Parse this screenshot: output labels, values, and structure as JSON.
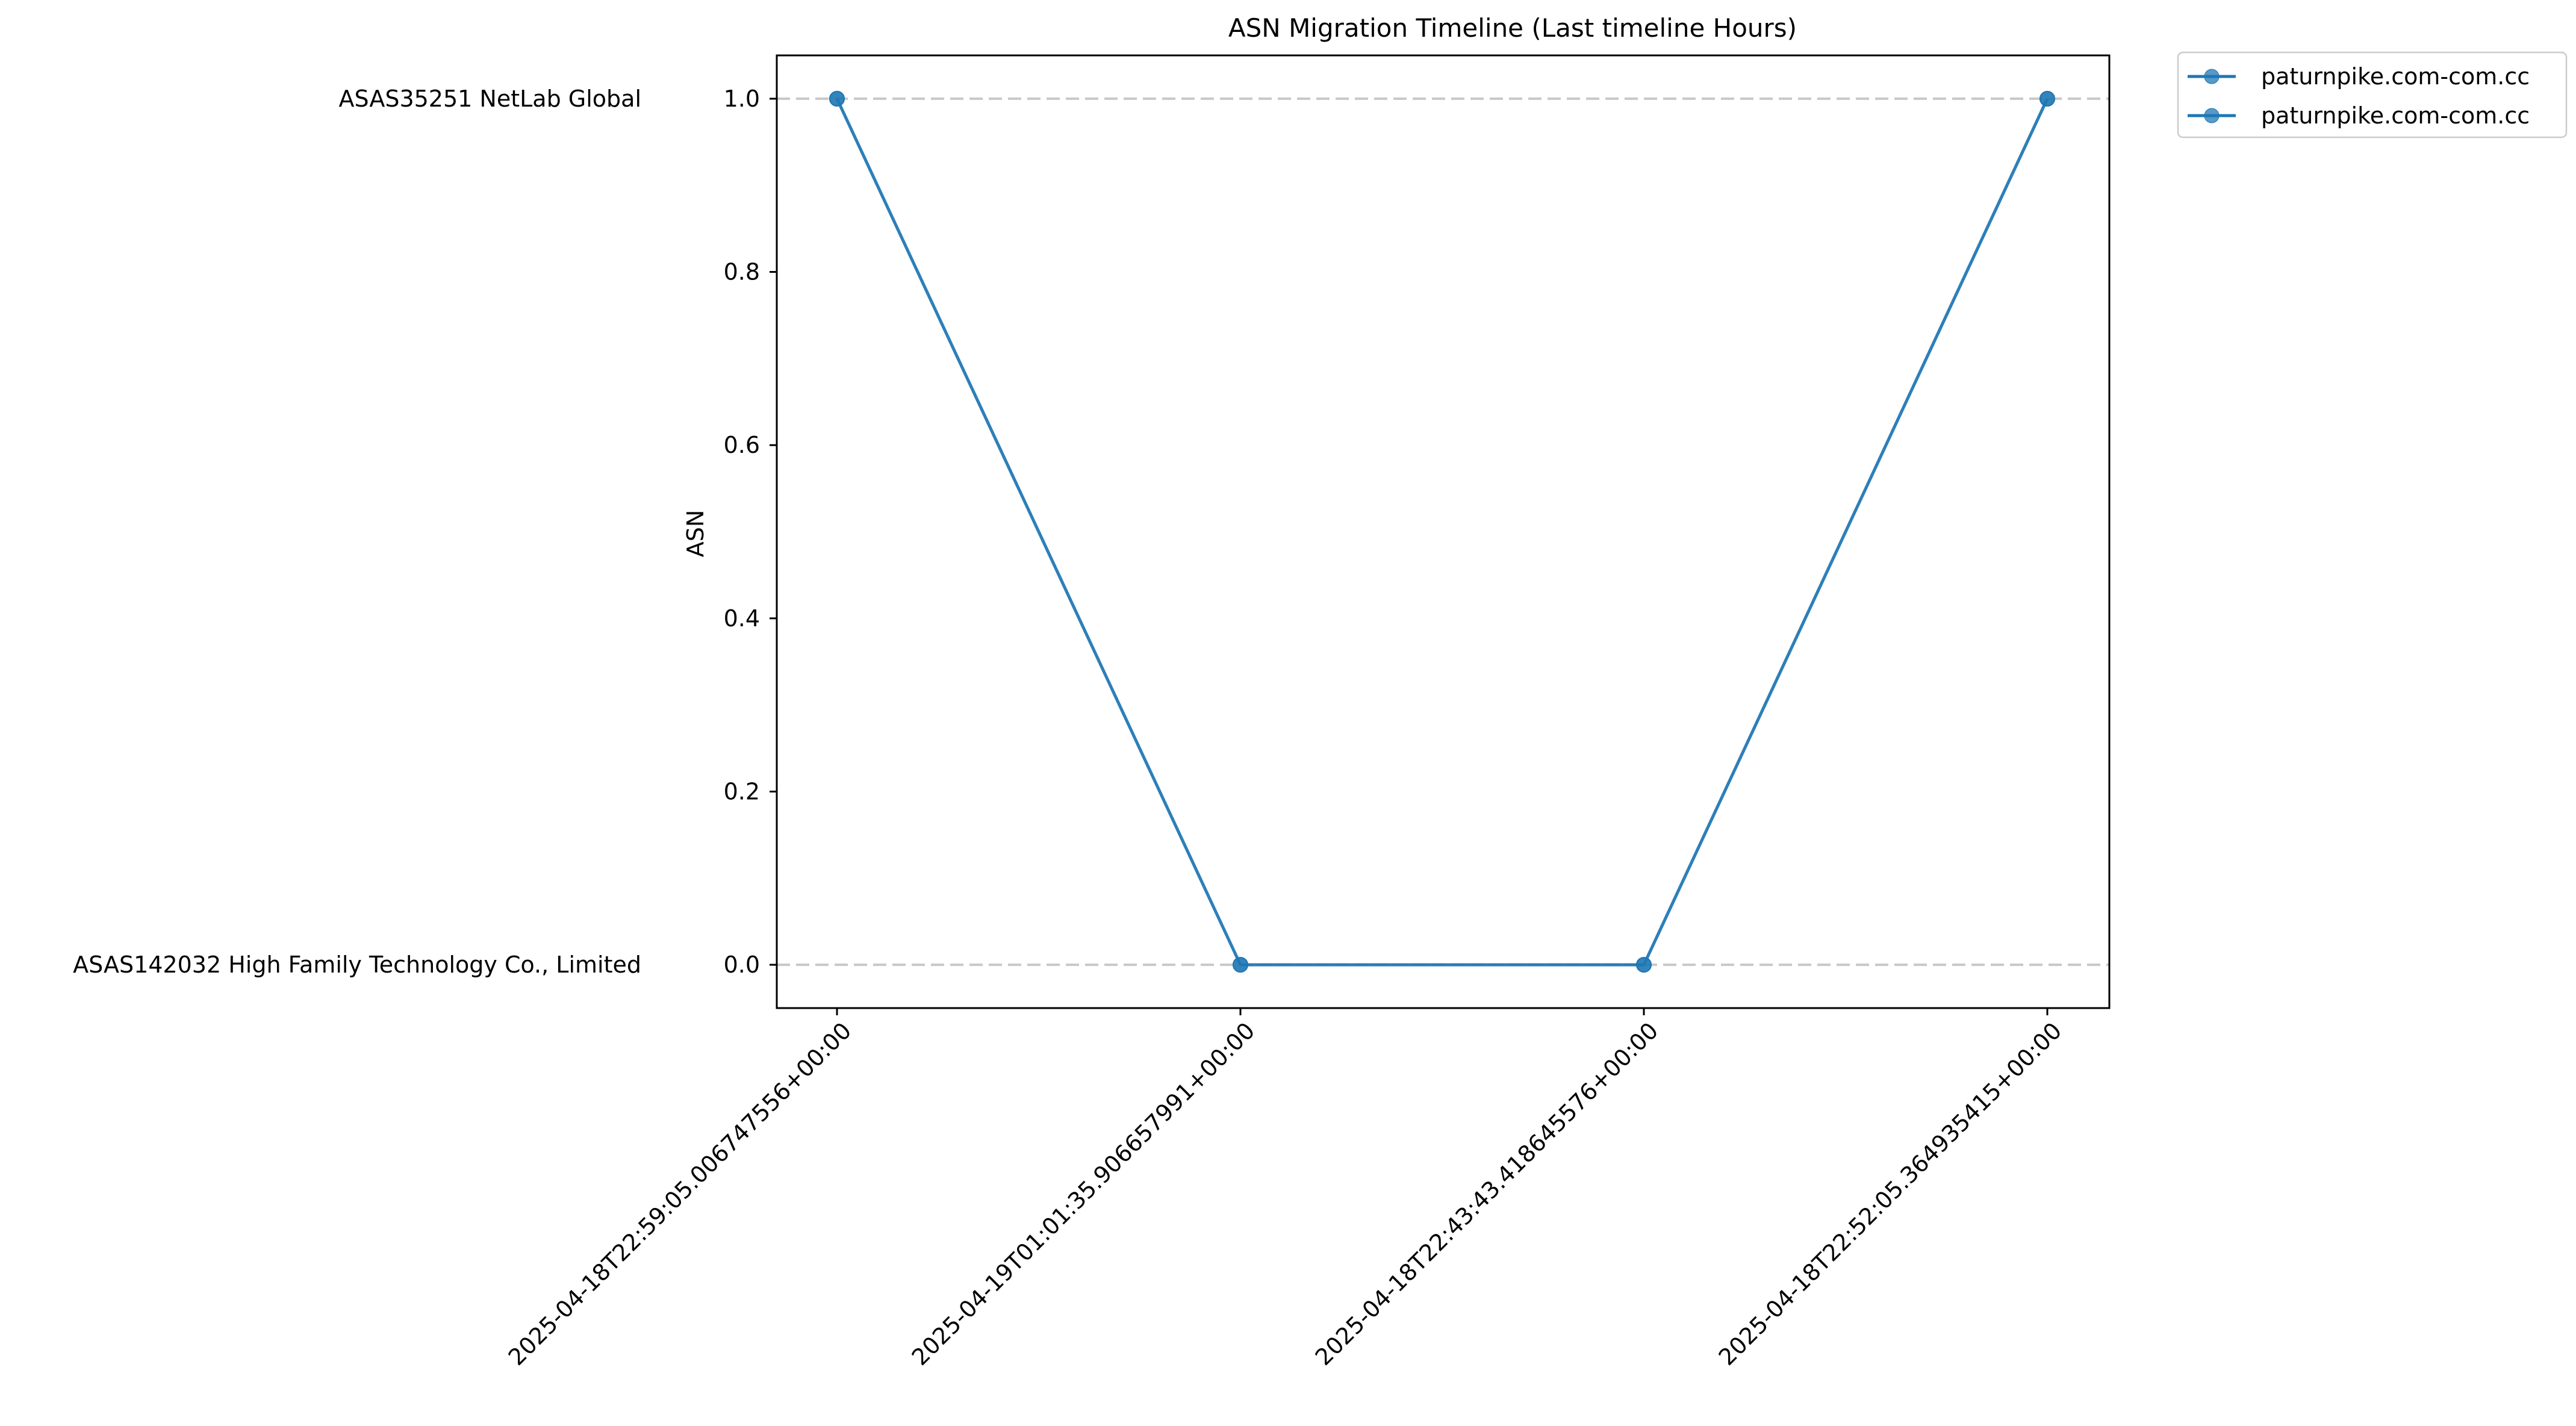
{
  "chart_data": {
    "type": "line",
    "title": "ASN Migration Timeline (Last timeline Hours)",
    "xlabel": "",
    "ylabel": "ASN",
    "categories": [
      "2025-04-18T22:59:05.006747556+00:00",
      "2025-04-19T01:01:35.906657991+00:00",
      "2025-04-18T22:43:43.418645576+00:00",
      "2025-04-18T22:52:05.364935415+00:00"
    ],
    "series": [
      {
        "name": "paturnpike.com-com.cc",
        "values": [
          1,
          0,
          0,
          1
        ]
      },
      {
        "name": "paturnpike.com-com.cc",
        "values": [
          1,
          0,
          0,
          1
        ]
      }
    ],
    "ylim": [
      -0.05,
      1.05
    ],
    "yticks": [
      "0.0",
      "0.2",
      "0.4",
      "0.6",
      "0.8",
      "1.0"
    ],
    "asn_levels": [
      {
        "value": 1,
        "label": "ASAS35251 NetLab Global"
      },
      {
        "value": 0,
        "label": "ASAS142032 High Family Technology Co., Limited"
      }
    ],
    "grid": "dashed horizontal at ASN levels",
    "legend_position": "outside top-right",
    "colors": {
      "series": "#1f77b4",
      "grid": "#c8c8c8",
      "axes": "#000000"
    }
  }
}
